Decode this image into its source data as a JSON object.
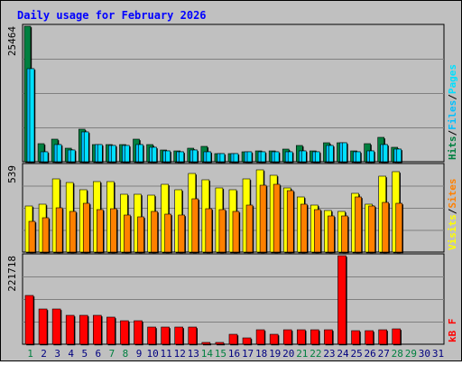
{
  "colors": {
    "background": "#c0c0c0",
    "title": "#0000ff",
    "hits": "#008040",
    "files": "#00c0ff",
    "pages": "#00e0ff",
    "visits": "#ffff00",
    "sites": "#ff8000",
    "kbytes": "#ff0000",
    "weekend_day_label": "#008040",
    "weekday_label": "#000080"
  },
  "chart_data": {
    "type": "bar",
    "title": "Daily usage for February 2026",
    "x": [
      "1",
      "2",
      "3",
      "4",
      "5",
      "6",
      "7",
      "8",
      "9",
      "10",
      "11",
      "12",
      "13",
      "14",
      "15",
      "16",
      "17",
      "18",
      "19",
      "20",
      "21",
      "22",
      "23",
      "24",
      "25",
      "26",
      "27",
      "28",
      "29",
      "30",
      "31"
    ],
    "weekend_days": [
      "1",
      "7",
      "8",
      "14",
      "15",
      "21",
      "22",
      "28",
      "29"
    ],
    "panels": [
      {
        "id": "hits_files_pages",
        "ymax_label": "25464",
        "ylim": [
          0,
          25464
        ],
        "grid": true,
        "legend": [
          "Hits",
          "/",
          "Files",
          "/",
          "Pages"
        ],
        "series": [
          {
            "name": "Hits",
            "values": [
              25464,
              3400,
              4300,
              2600,
              6100,
              3300,
              3200,
              3300,
              4300,
              3200,
              2200,
              2100,
              2500,
              2900,
              1500,
              1600,
              1900,
              2000,
              2100,
              2300,
              3000,
              2000,
              3600,
              3600,
              2100,
              3400,
              4600,
              2800,
              0,
              0,
              0
            ]
          },
          {
            "name": "Files",
            "values": [
              17500,
              1900,
              3300,
              2200,
              5600,
              3200,
              3100,
              3100,
              3200,
              2800,
              2000,
              1900,
              2200,
              1900,
              1500,
              1500,
              1800,
              1800,
              1900,
              1900,
              2000,
              1800,
              3100,
              3500,
              1900,
              2100,
              3200,
              2400,
              0,
              0,
              0
            ]
          },
          {
            "name": "Pages",
            "values": [
              17500,
              1900,
              3300,
              2200,
              5600,
              3200,
              3100,
              3100,
              3200,
              2800,
              2000,
              1900,
              2200,
              1900,
              1500,
              1500,
              1800,
              1800,
              1900,
              1900,
              2000,
              1800,
              3100,
              3500,
              1900,
              2100,
              3200,
              2400,
              0,
              0,
              0
            ]
          }
        ]
      },
      {
        "id": "visits_sites",
        "ymax_label": "539",
        "ylim": [
          0,
          539
        ],
        "grid": true,
        "legend": [
          "Visits",
          "/",
          "Sites"
        ],
        "series": [
          {
            "name": "Visits",
            "values": [
              285,
              300,
              455,
              430,
              390,
              440,
              440,
              360,
              360,
              355,
              420,
              390,
              490,
              450,
              400,
              390,
              455,
              510,
              475,
              400,
              345,
              290,
              260,
              255,
              365,
              295,
              470,
              500,
              0,
              0,
              0
            ]
          },
          {
            "name": "Sites",
            "values": [
              190,
              215,
              275,
              250,
              305,
              265,
              270,
              230,
              220,
              255,
              235,
              230,
              330,
              270,
              265,
              250,
              290,
              415,
              420,
              380,
              300,
              265,
              225,
              225,
              345,
              285,
              310,
              305,
              0,
              0,
              0
            ]
          }
        ]
      },
      {
        "id": "kbytes",
        "ymax_label": "221718",
        "ylim": [
          0,
          221718
        ],
        "grid": true,
        "legend": [
          "kB",
          "F"
        ],
        "series": [
          {
            "name": "kB F",
            "values": [
              123000,
              88000,
              88000,
              73000,
              73000,
              73000,
              68000,
              59000,
              59000,
              43000,
              43000,
              43000,
              43000,
              4500,
              4500,
              24000,
              16000,
              37000,
              26000,
              37000,
              37000,
              37000,
              37000,
              221718,
              35000,
              35000,
              37000,
              39000,
              0,
              0,
              0
            ]
          }
        ]
      }
    ]
  }
}
